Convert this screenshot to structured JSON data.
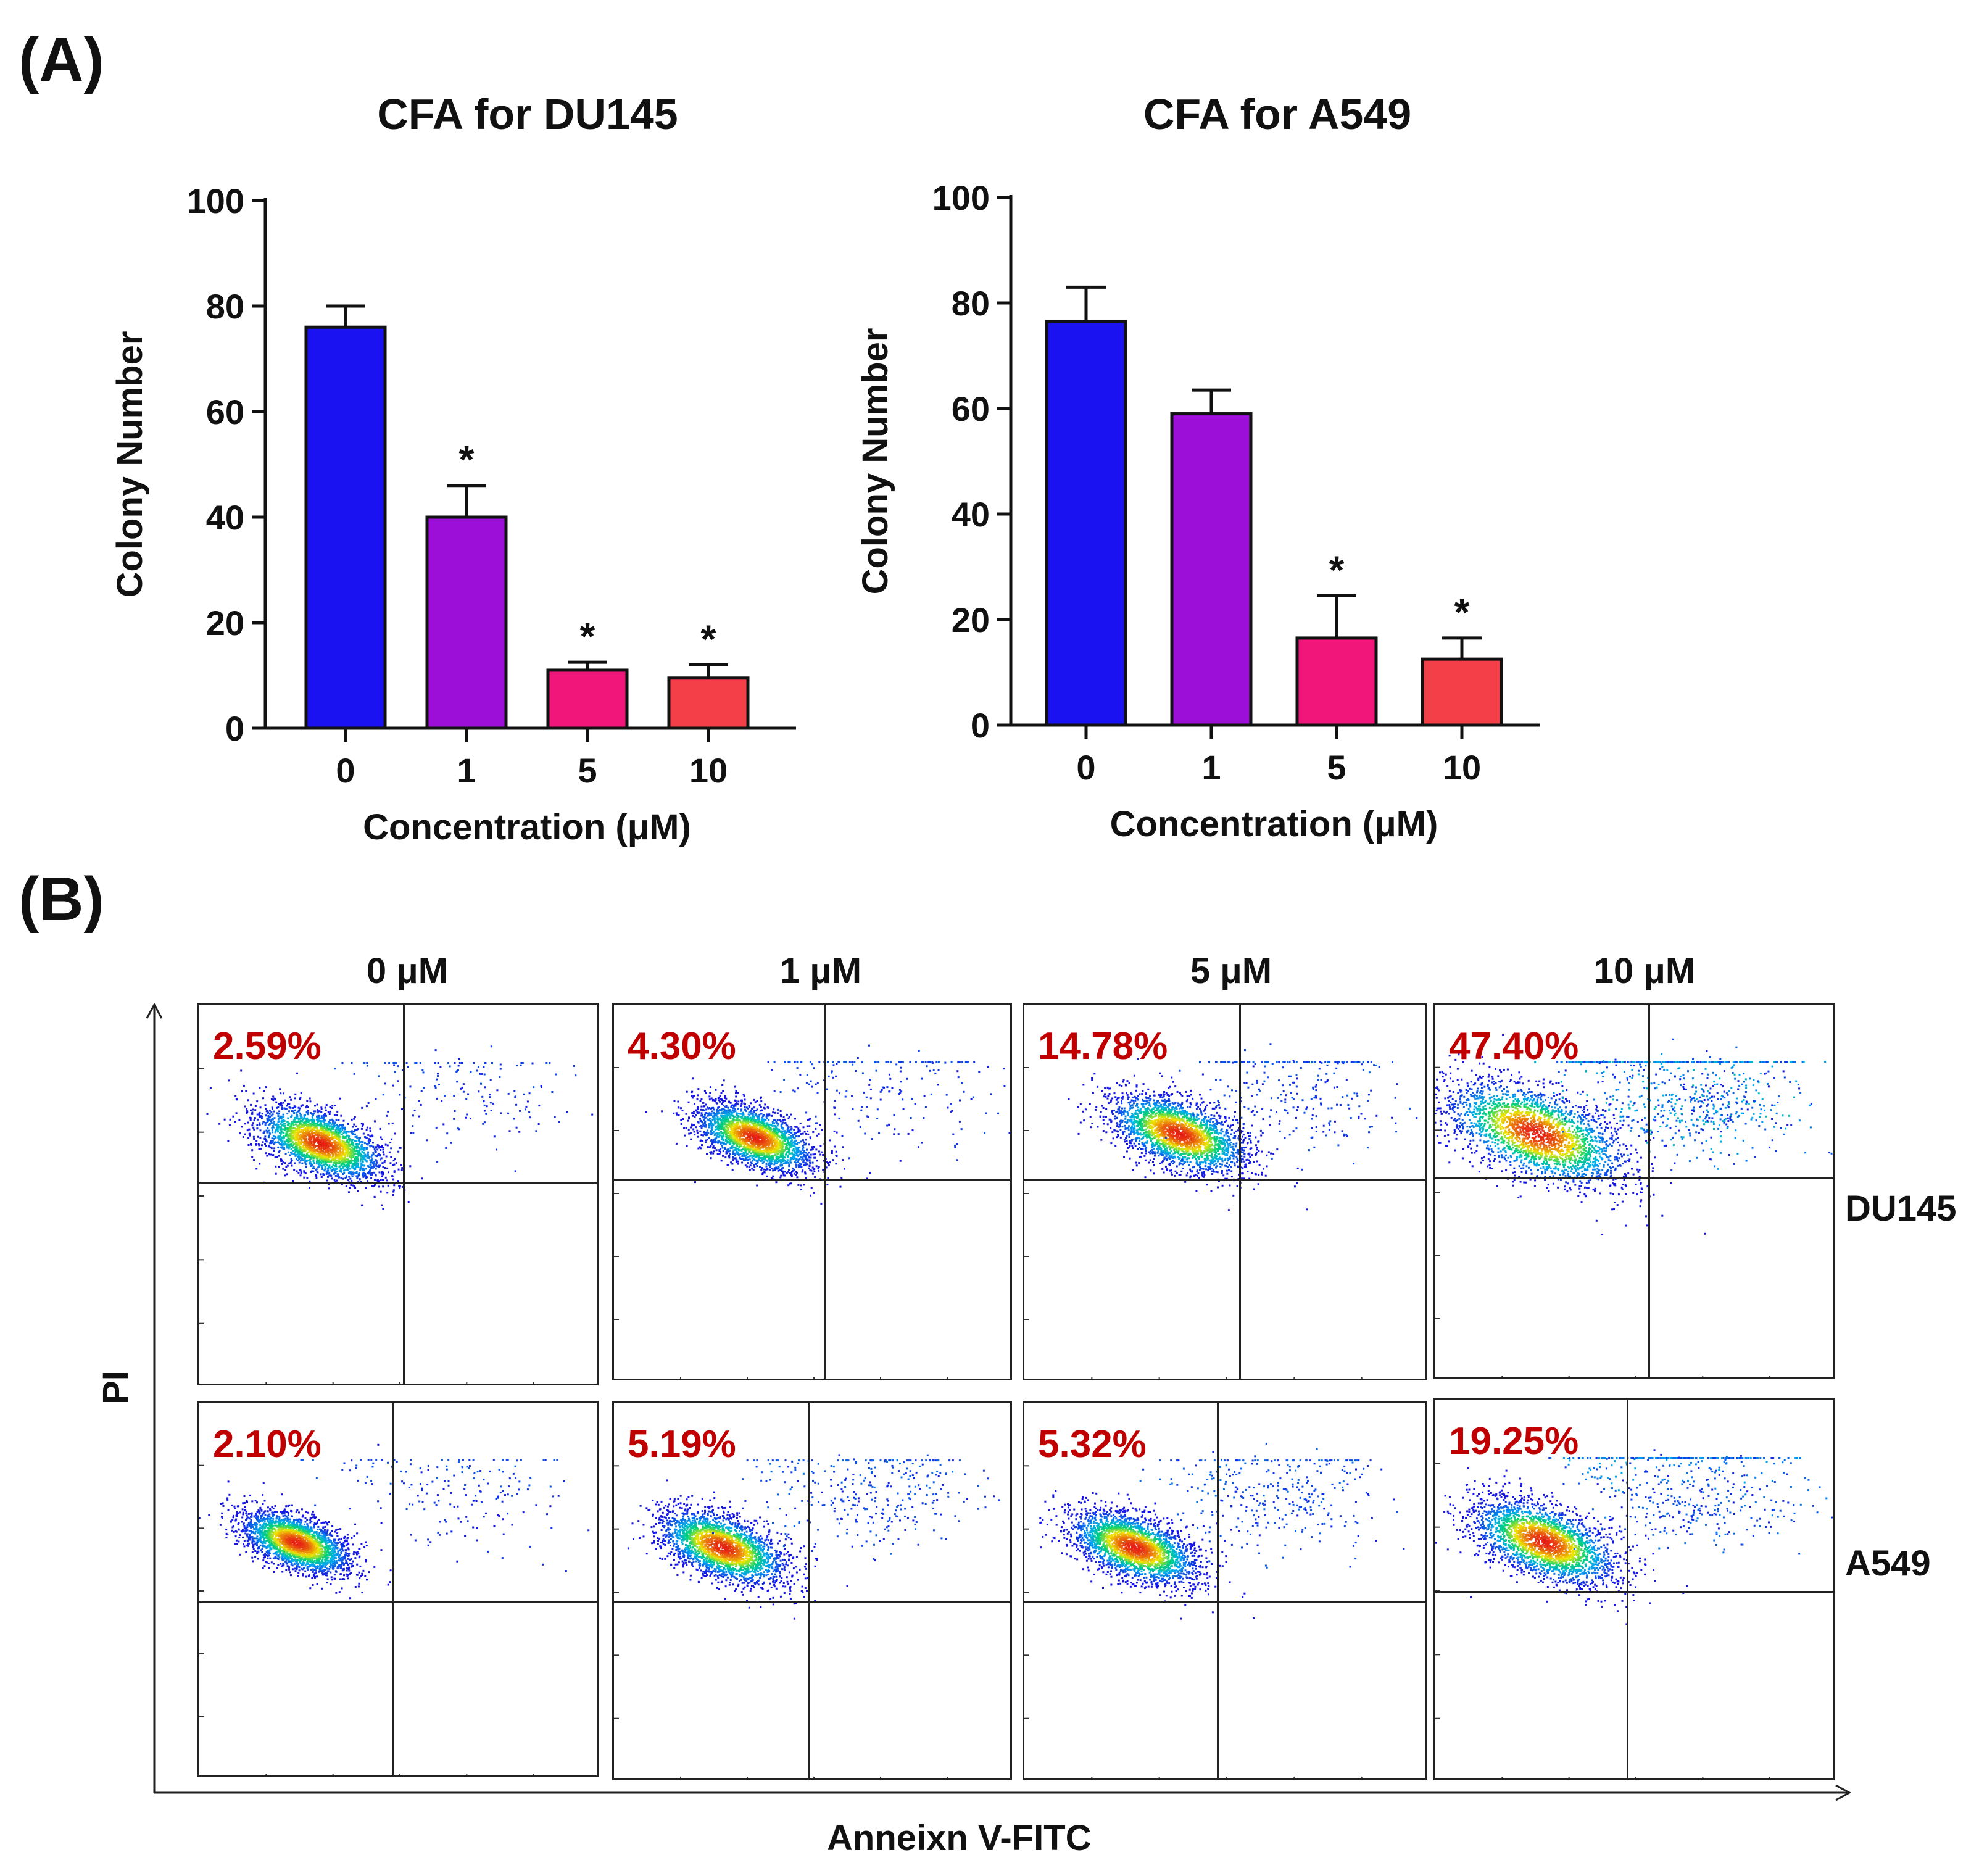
{
  "panel_a_label": "(A)",
  "panel_b_label": "(B)",
  "chart_data": [
    {
      "type": "bar",
      "title": "CFA for DU145",
      "xlabel": "Concentration (μM)",
      "ylabel": "Colony Number",
      "categories": [
        "0",
        "1",
        "5",
        "10"
      ],
      "values": [
        76,
        40,
        11,
        9.5
      ],
      "errors": [
        4,
        6,
        1.5,
        2.5
      ],
      "significance": [
        "",
        "*",
        "*",
        "*"
      ],
      "colors": [
        "#1a12f0",
        "#9b0fd8",
        "#f0167a",
        "#f43e48"
      ],
      "ylim": [
        0,
        100
      ],
      "yticks": [
        "0",
        "20",
        "40",
        "60",
        "80",
        "100"
      ]
    },
    {
      "type": "bar",
      "title": "CFA for A549",
      "xlabel": "Concentration (μM)",
      "ylabel": "Colony Number",
      "categories": [
        "0",
        "1",
        "5",
        "10"
      ],
      "values": [
        76.5,
        59,
        16.5,
        12.5
      ],
      "errors": [
        6.5,
        4.5,
        8,
        4
      ],
      "significance": [
        "",
        "",
        "*",
        "*"
      ],
      "colors": [
        "#1a12f0",
        "#9b0fd8",
        "#f0167a",
        "#f43e48"
      ],
      "ylim": [
        0,
        100
      ],
      "yticks": [
        "0",
        "20",
        "40",
        "60",
        "80",
        "100"
      ]
    }
  ],
  "flow": {
    "conc_headers": [
      "0 μM",
      "1 μM",
      "5 μM",
      "10 μM"
    ],
    "rows": [
      {
        "cell_line": "DU145",
        "percentages": [
          "2.59%",
          "4.30%",
          "14.78%",
          "47.40%"
        ]
      },
      {
        "cell_line": "A549",
        "percentages": [
          "2.10%",
          "5.19%",
          "5.32%",
          "19.25%"
        ]
      }
    ],
    "y_axis_label": "PI",
    "x_axis_label": "Anneixn V-FITC"
  }
}
